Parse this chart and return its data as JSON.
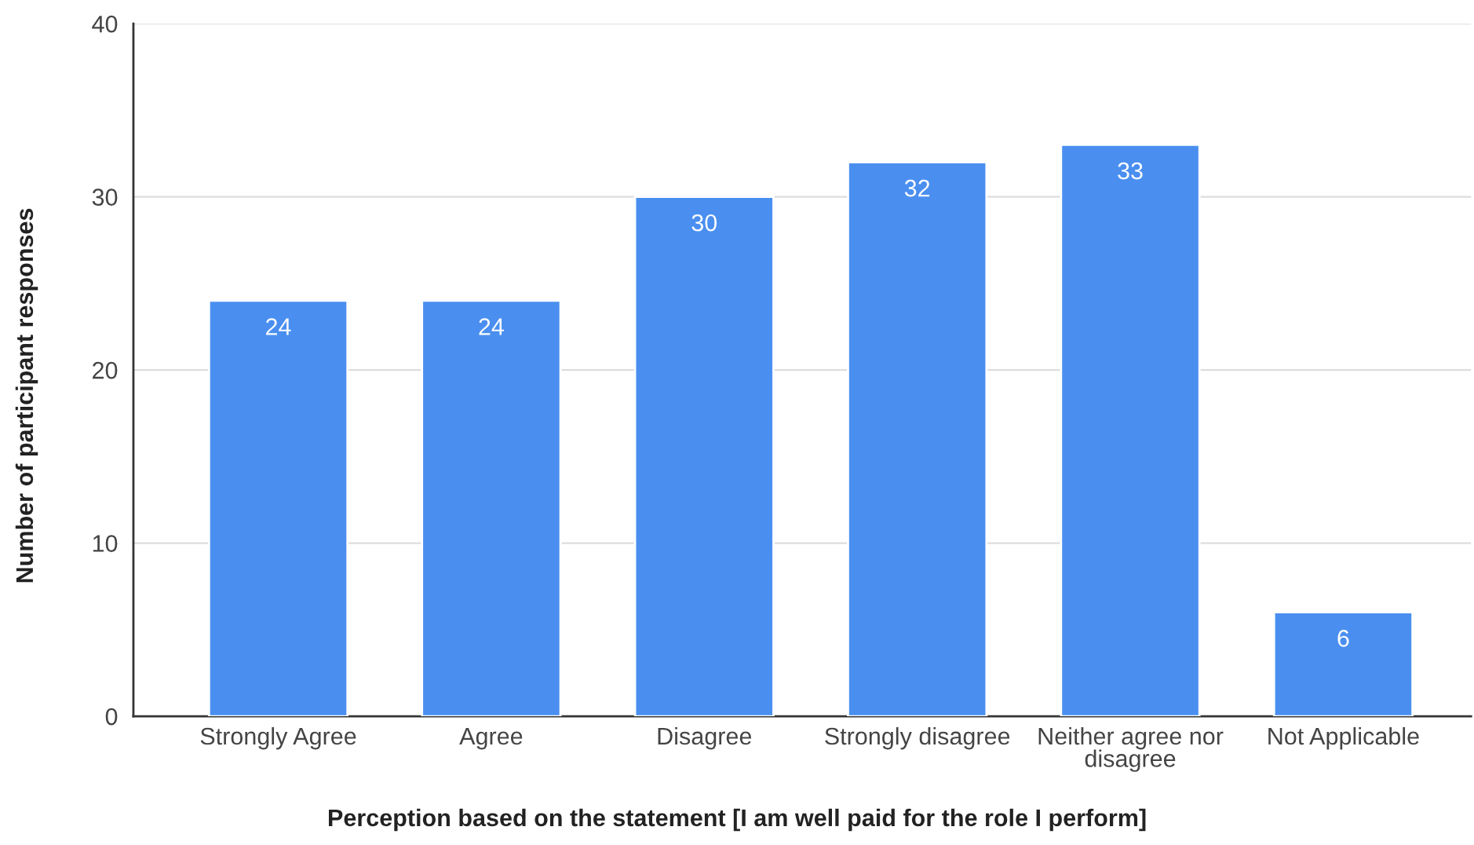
{
  "chart_data": {
    "type": "bar",
    "xlabel": "Perception based on the statement [I am well paid for the role I perform]",
    "ylabel": "Number of participant responses",
    "categories": [
      "Strongly Agree",
      "Agree",
      "Disagree",
      "Strongly disagree",
      "Neither agree nor\ndisagree",
      "Not Applicable"
    ],
    "values": [
      24,
      24,
      30,
      32,
      33,
      6
    ],
    "color": "#4a8ff0",
    "ylim": [
      0,
      40
    ],
    "yticks": [
      0,
      10,
      20,
      30,
      40
    ],
    "grid": "y",
    "data_labels": true,
    "legend": false
  }
}
